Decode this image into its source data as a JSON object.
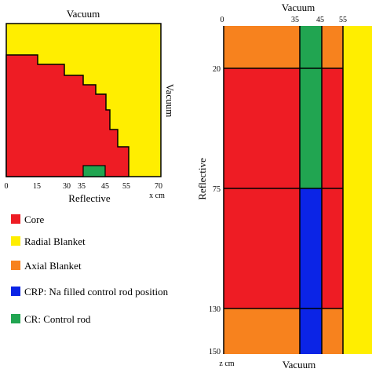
{
  "colors": {
    "core": "#ee1c24",
    "radial_blanket": "#ffee00",
    "axial_blanket": "#f7821e",
    "crp": "#0b24e6",
    "cr": "#21a551",
    "outline": "#000000"
  },
  "radial_view": {
    "top_label": "Vacuum",
    "right_label": "Vacuum",
    "bottom_label": "Reflective",
    "x_unit": "x cm",
    "x_ticks": [
      "0",
      "15",
      "30",
      "35",
      "45",
      "55",
      "70"
    ]
  },
  "axial_view": {
    "top_label": "Vacuum",
    "left_label": "Reflective",
    "bottom_label": "Vacuum",
    "z_unit": "z cm",
    "x_ticks": [
      "0",
      "35",
      "45",
      "55"
    ],
    "z_ticks": [
      "20",
      "75",
      "130",
      "150"
    ]
  },
  "legend": [
    {
      "key": "core",
      "label": "Core"
    },
    {
      "key": "radial_blanket",
      "label": "Radial Blanket"
    },
    {
      "key": "axial_blanket",
      "label": "Axial Blanket"
    },
    {
      "key": "crp",
      "label": "CRP: Na filled control rod position"
    },
    {
      "key": "cr",
      "label": "CR: Control rod"
    }
  ]
}
